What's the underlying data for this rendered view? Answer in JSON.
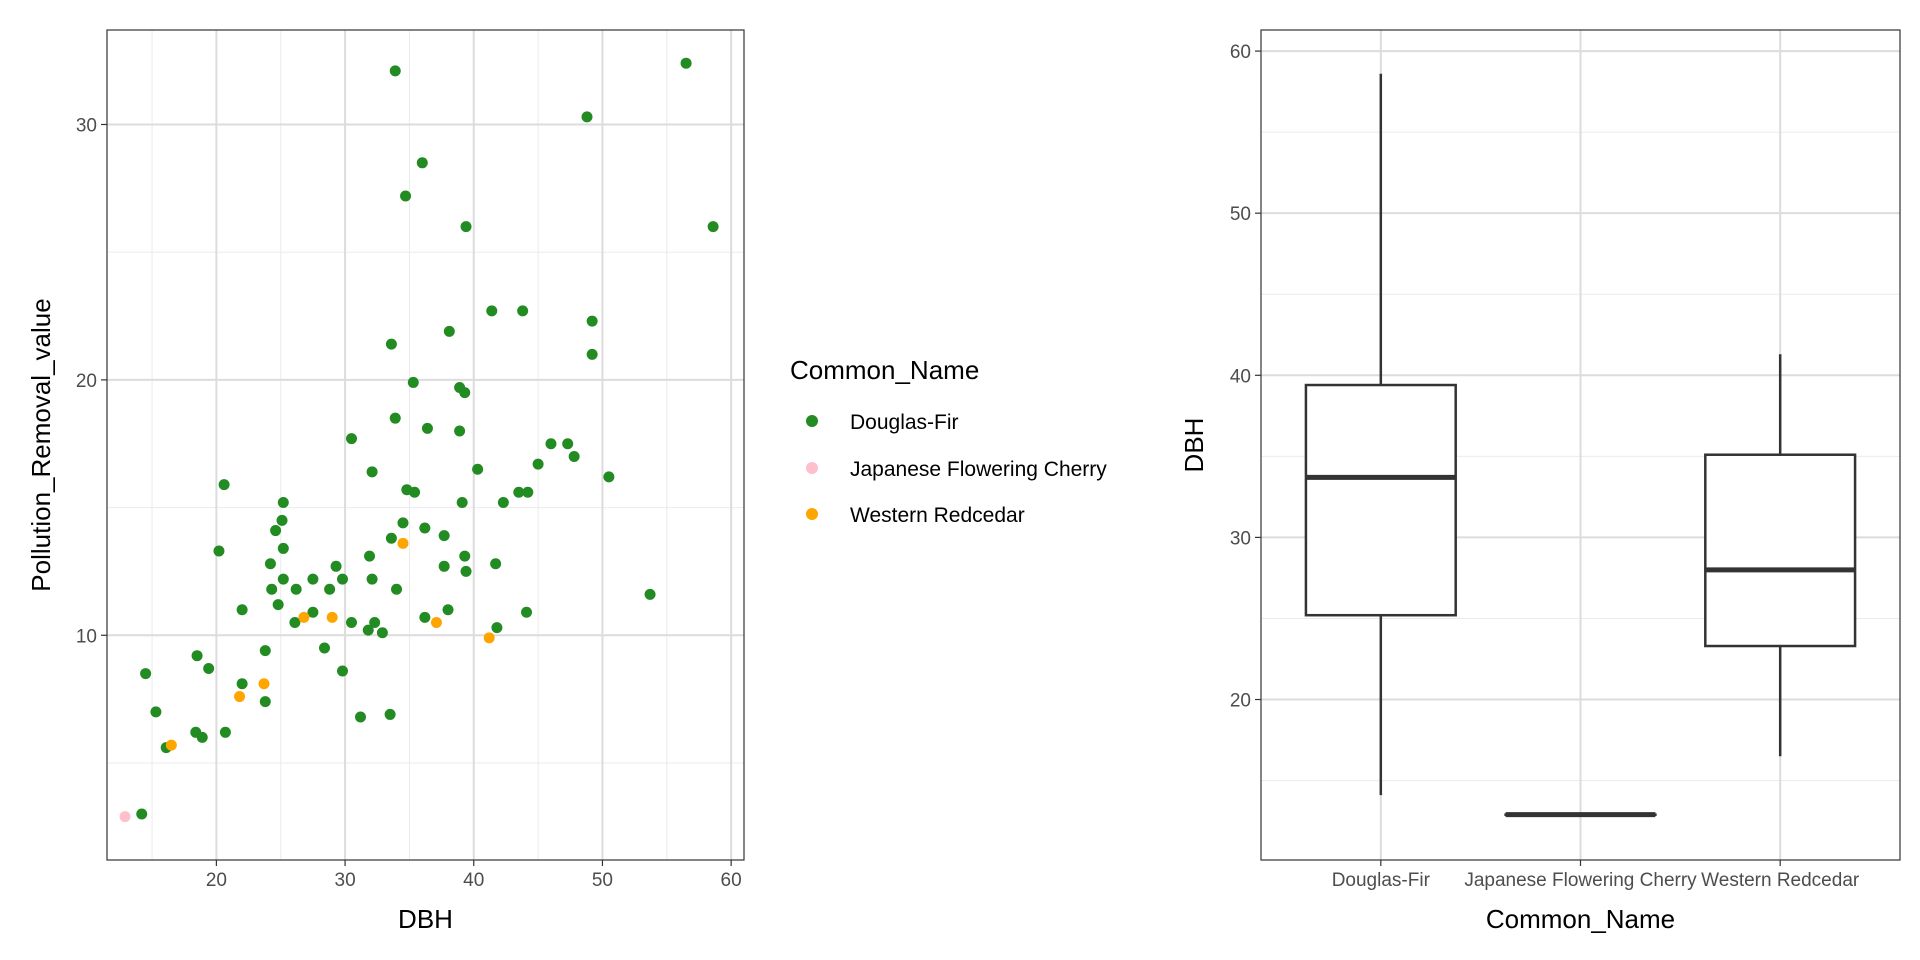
{
  "chart_data": [
    {
      "type": "scatter",
      "title": "",
      "xlabel": "DBH",
      "ylabel": "Pollution_Removal_value",
      "xlim": [
        11.5,
        61
      ],
      "ylim": [
        1.2,
        33.7
      ],
      "xticks": [
        20,
        30,
        40,
        50,
        60
      ],
      "yticks": [
        10,
        20,
        30
      ],
      "x_tick_labels": [
        "20",
        "30",
        "40",
        "50",
        "60"
      ],
      "y_tick_labels": [
        "10",
        "20",
        "30"
      ],
      "grid": true,
      "legend": {
        "title": "Common_Name",
        "placement": "right",
        "entries": [
          "Douglas-Fir",
          "Japanese Flowering Cherry",
          "Western Redcedar"
        ]
      },
      "series": [
        {
          "name": "Douglas-Fir",
          "color": "#228B22",
          "points": [
            [
              33.9,
              32.1
            ],
            [
              56.5,
              32.4
            ],
            [
              48.8,
              30.3
            ],
            [
              36.0,
              28.5
            ],
            [
              34.7,
              27.2
            ],
            [
              39.4,
              26.0
            ],
            [
              58.6,
              26.0
            ],
            [
              41.4,
              22.7
            ],
            [
              43.8,
              22.7
            ],
            [
              49.2,
              22.3
            ],
            [
              38.1,
              21.9
            ],
            [
              33.6,
              21.4
            ],
            [
              49.2,
              21.0
            ],
            [
              35.3,
              19.9
            ],
            [
              38.9,
              19.7
            ],
            [
              39.3,
              19.5
            ],
            [
              33.9,
              18.5
            ],
            [
              36.4,
              18.1
            ],
            [
              38.9,
              18.0
            ],
            [
              30.5,
              17.7
            ],
            [
              46.0,
              17.5
            ],
            [
              47.3,
              17.5
            ],
            [
              47.8,
              17.0
            ],
            [
              45.0,
              16.7
            ],
            [
              40.3,
              16.5
            ],
            [
              32.1,
              16.4
            ],
            [
              50.5,
              16.2
            ],
            [
              20.6,
              15.9
            ],
            [
              34.8,
              15.7
            ],
            [
              35.4,
              15.6
            ],
            [
              43.5,
              15.6
            ],
            [
              44.2,
              15.6
            ],
            [
              25.2,
              15.2
            ],
            [
              39.1,
              15.2
            ],
            [
              42.3,
              15.2
            ],
            [
              25.1,
              14.5
            ],
            [
              34.5,
              14.4
            ],
            [
              36.2,
              14.2
            ],
            [
              24.6,
              14.1
            ],
            [
              37.7,
              13.9
            ],
            [
              33.6,
              13.8
            ],
            [
              20.2,
              13.3
            ],
            [
              25.2,
              13.4
            ],
            [
              31.9,
              13.1
            ],
            [
              39.3,
              13.1
            ],
            [
              24.2,
              12.8
            ],
            [
              37.7,
              12.7
            ],
            [
              41.7,
              12.8
            ],
            [
              29.3,
              12.7
            ],
            [
              39.4,
              12.5
            ],
            [
              25.2,
              12.2
            ],
            [
              27.5,
              12.2
            ],
            [
              29.8,
              12.2
            ],
            [
              32.1,
              12.2
            ],
            [
              24.3,
              11.8
            ],
            [
              26.2,
              11.8
            ],
            [
              28.8,
              11.8
            ],
            [
              34.0,
              11.8
            ],
            [
              24.8,
              11.2
            ],
            [
              27.5,
              10.9
            ],
            [
              22.0,
              11.0
            ],
            [
              38.0,
              11.0
            ],
            [
              44.1,
              10.9
            ],
            [
              36.2,
              10.7
            ],
            [
              26.1,
              10.5
            ],
            [
              30.5,
              10.5
            ],
            [
              32.3,
              10.5
            ],
            [
              31.8,
              10.2
            ],
            [
              32.9,
              10.1
            ],
            [
              41.8,
              10.3
            ],
            [
              28.4,
              9.5
            ],
            [
              23.8,
              9.4
            ],
            [
              18.5,
              9.2
            ],
            [
              19.4,
              8.7
            ],
            [
              14.5,
              8.5
            ],
            [
              29.8,
              8.6
            ],
            [
              22.0,
              8.1
            ],
            [
              23.8,
              7.4
            ],
            [
              15.3,
              7.0
            ],
            [
              31.2,
              6.8
            ],
            [
              33.5,
              6.9
            ],
            [
              20.7,
              6.2
            ],
            [
              18.4,
              6.2
            ],
            [
              18.9,
              6.0
            ],
            [
              16.1,
              5.6
            ],
            [
              14.2,
              3.0
            ],
            [
              53.7,
              11.6
            ]
          ]
        },
        {
          "name": "Japanese Flowering Cherry",
          "color": "#FFC0CB",
          "points": [
            [
              12.9,
              2.9
            ]
          ]
        },
        {
          "name": "Western Redcedar",
          "color": "#FFA500",
          "points": [
            [
              34.5,
              13.6
            ],
            [
              37.1,
              10.5
            ],
            [
              41.2,
              9.9
            ],
            [
              29.0,
              10.7
            ],
            [
              26.8,
              10.7
            ],
            [
              23.7,
              8.1
            ],
            [
              21.8,
              7.6
            ],
            [
              16.5,
              5.7
            ]
          ]
        }
      ]
    },
    {
      "type": "box",
      "title": "",
      "xlabel": "Common_Name",
      "ylabel": "DBH",
      "ylim": [
        10.1,
        61.3
      ],
      "yticks": [
        20,
        30,
        40,
        50,
        60
      ],
      "y_tick_labels": [
        "20",
        "30",
        "40",
        "50",
        "60"
      ],
      "grid": true,
      "categories": [
        "Douglas-Fir",
        "Japanese Flowering Cherry",
        "Western Redcedar"
      ],
      "boxes": [
        {
          "category": "Douglas-Fir",
          "whisker_low": 14.1,
          "q1": 25.2,
          "median": 33.7,
          "q3": 39.4,
          "whisker_high": 58.6
        },
        {
          "category": "Japanese Flowering Cherry",
          "whisker_low": 12.9,
          "q1": 12.9,
          "median": 12.9,
          "q3": 12.9,
          "whisker_high": 12.9
        },
        {
          "category": "Western Redcedar",
          "whisker_low": 16.5,
          "q1": 23.3,
          "median": 28.0,
          "q3": 35.1,
          "whisker_high": 41.3
        }
      ]
    }
  ]
}
